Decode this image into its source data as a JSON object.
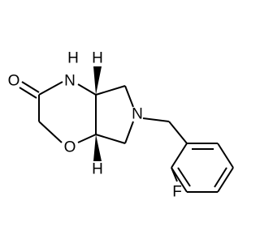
{
  "atoms": [
    "O",
    "N",
    "H",
    "O",
    "N",
    "F",
    "H",
    "H"
  ]
}
